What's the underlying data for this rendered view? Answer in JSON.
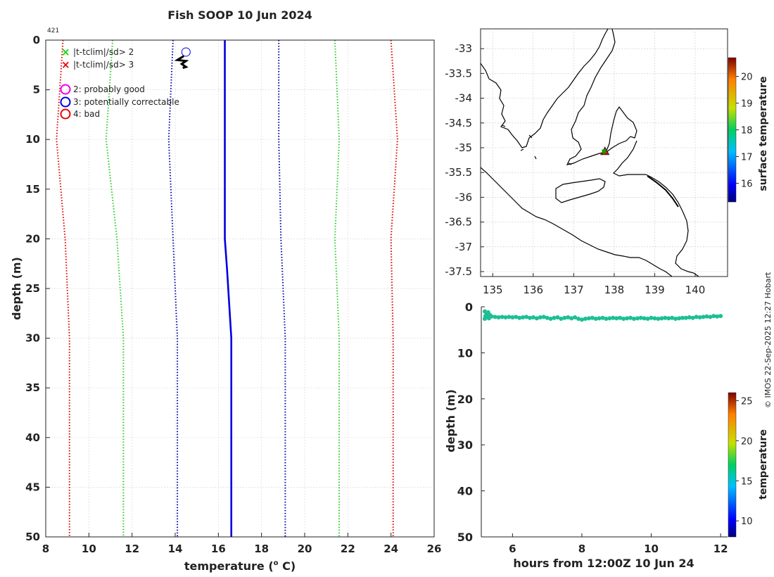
{
  "title": "Fish SOOP 10 Jun 2024",
  "drop_number": "421",
  "credit": "© IMOS 22-Sep-2025 12:27 Hobart",
  "chart_data": [
    {
      "id": "profile",
      "type": "line",
      "xlabel": "temperature (",
      "xlabel_sup": "o",
      "xlabel_tail": " C)",
      "ylabel": "depth (m)",
      "xlim": [
        8,
        26
      ],
      "ylim": [
        0,
        50
      ],
      "y_reversed": true,
      "grid": true,
      "xticks": [
        8,
        10,
        12,
        14,
        16,
        18,
        20,
        22,
        24,
        26
      ],
      "yticks": [
        0,
        5,
        10,
        15,
        20,
        25,
        30,
        35,
        40,
        45,
        50
      ],
      "legend_flags": [
        {
          "label": "|t-tclim|/sd> 2",
          "color": "#00dd00",
          "marker": "x"
        },
        {
          "label": "|t-tclim|/sd> 3",
          "color": "#ee0000",
          "marker": "x"
        }
      ],
      "legend_quality": [
        {
          "label": "2: probably good",
          "color": "#ee00ee",
          "marker": "o"
        },
        {
          "label": "3: potentially correctable",
          "color": "#0000dd",
          "marker": "o"
        },
        {
          "label": "4: bad",
          "color": "#ee0000",
          "marker": "o"
        }
      ],
      "series": [
        {
          "color": "#dd0000",
          "style": "dotted",
          "points": [
            [
              8.8,
              0
            ],
            [
              8.5,
              10
            ],
            [
              8.9,
              20
            ],
            [
              9.1,
              30
            ],
            [
              9.1,
              50
            ]
          ]
        },
        {
          "color": "#22cc22",
          "style": "dotted",
          "points": [
            [
              11.1,
              0
            ],
            [
              10.8,
              10
            ],
            [
              11.3,
              20
            ],
            [
              11.6,
              30
            ],
            [
              11.6,
              50
            ]
          ]
        },
        {
          "color": "#0000aa",
          "style": "dotted",
          "points": [
            [
              13.9,
              0
            ],
            [
              13.7,
              10
            ],
            [
              13.9,
              20
            ],
            [
              14.1,
              30
            ],
            [
              14.1,
              50
            ]
          ]
        },
        {
          "color": "#0000dd",
          "style": "solid",
          "points": [
            [
              16.3,
              0
            ],
            [
              16.3,
              10
            ],
            [
              16.3,
              20
            ],
            [
              16.4,
              23
            ],
            [
              16.6,
              30
            ],
            [
              16.6,
              50
            ]
          ]
        },
        {
          "color": "#0000aa",
          "style": "dotted",
          "points": [
            [
              18.8,
              0
            ],
            [
              18.8,
              10
            ],
            [
              18.9,
              20
            ],
            [
              19.1,
              30
            ],
            [
              19.1,
              50
            ]
          ]
        },
        {
          "color": "#22cc22",
          "style": "dotted",
          "points": [
            [
              21.4,
              0
            ],
            [
              21.6,
              10
            ],
            [
              21.4,
              20
            ],
            [
              21.6,
              30
            ],
            [
              21.6,
              50
            ]
          ]
        },
        {
          "color": "#dd0000",
          "style": "dotted",
          "points": [
            [
              24.0,
              0
            ],
            [
              24.3,
              10
            ],
            [
              24.0,
              20
            ],
            [
              24.1,
              30
            ],
            [
              24.1,
              50
            ]
          ]
        }
      ],
      "black_trace": [
        [
          14.4,
          1.6
        ],
        [
          14.1,
          2.0
        ],
        [
          14.5,
          2.1
        ],
        [
          14.3,
          2.4
        ],
        [
          14.5,
          2.7
        ],
        [
          14.35,
          2.8
        ]
      ],
      "flag_circle": {
        "x": 14.5,
        "y": 1.2,
        "color": "#0000dd"
      }
    },
    {
      "id": "map",
      "type": "map",
      "xlim": [
        134.7,
        140.8
      ],
      "ylim": [
        -37.6,
        -32.6
      ],
      "xticks": [
        135,
        136,
        137,
        138,
        139,
        140
      ],
      "yticks": [
        -33,
        -33.5,
        -34,
        -34.5,
        -35,
        -35.5,
        -36,
        -36.5,
        -37,
        -37.5
      ],
      "ytick_labels": [
        "-33",
        "-33.5",
        "-34",
        "-34.5",
        "-35",
        "-35.5",
        "-36",
        "-36.5",
        "-37",
        "-37.5"
      ],
      "grid": true,
      "marker": {
        "lon": 137.77,
        "lat": -35.07
      },
      "colorbar": {
        "label": "surface temperature",
        "range": [
          15.3,
          20.7
        ],
        "ticks": [
          16,
          17,
          18,
          19,
          20
        ]
      }
    },
    {
      "id": "timeseries",
      "type": "scatter",
      "xlabel": "hours from 12:00Z 10 Jun 24",
      "ylabel": "depth (m)",
      "xlim": [
        5.1,
        12.2
      ],
      "ylim": [
        0,
        50
      ],
      "y_reversed": true,
      "xticks": [
        6,
        8,
        10,
        12
      ],
      "yticks": [
        0,
        10,
        20,
        30,
        40,
        50
      ],
      "point_color": "#1dbf95",
      "points": [
        [
          5.2,
          1.0
        ],
        [
          5.25,
          1.5
        ],
        [
          5.3,
          1.2
        ],
        [
          5.22,
          2.0
        ],
        [
          5.28,
          2.3
        ],
        [
          5.35,
          1.8
        ],
        [
          5.2,
          2.6
        ],
        [
          5.32,
          2.5
        ],
        [
          5.4,
          2.1
        ],
        [
          5.5,
          2.2
        ],
        [
          5.6,
          2.3
        ],
        [
          5.7,
          2.2
        ],
        [
          5.8,
          2.3
        ],
        [
          5.9,
          2.2
        ],
        [
          6.0,
          2.3
        ],
        [
          6.1,
          2.2
        ],
        [
          6.2,
          2.4
        ],
        [
          6.3,
          2.3
        ],
        [
          6.4,
          2.2
        ],
        [
          6.5,
          2.4
        ],
        [
          6.6,
          2.3
        ],
        [
          6.7,
          2.5
        ],
        [
          6.8,
          2.3
        ],
        [
          6.9,
          2.2
        ],
        [
          7.0,
          2.4
        ],
        [
          7.1,
          2.6
        ],
        [
          7.2,
          2.4
        ],
        [
          7.3,
          2.3
        ],
        [
          7.4,
          2.6
        ],
        [
          7.5,
          2.4
        ],
        [
          7.6,
          2.3
        ],
        [
          7.7,
          2.5
        ],
        [
          7.8,
          2.3
        ],
        [
          7.9,
          2.6
        ],
        [
          8.0,
          2.8
        ],
        [
          8.1,
          2.6
        ],
        [
          8.2,
          2.5
        ],
        [
          8.3,
          2.4
        ],
        [
          8.4,
          2.6
        ],
        [
          8.5,
          2.5
        ],
        [
          8.6,
          2.4
        ],
        [
          8.7,
          2.6
        ],
        [
          8.8,
          2.5
        ],
        [
          8.9,
          2.4
        ],
        [
          9.0,
          2.5
        ],
        [
          9.1,
          2.4
        ],
        [
          9.2,
          2.6
        ],
        [
          9.3,
          2.5
        ],
        [
          9.4,
          2.4
        ],
        [
          9.5,
          2.6
        ],
        [
          9.6,
          2.5
        ],
        [
          9.7,
          2.4
        ],
        [
          9.8,
          2.5
        ],
        [
          9.9,
          2.6
        ],
        [
          10.0,
          2.4
        ],
        [
          10.1,
          2.5
        ],
        [
          10.2,
          2.6
        ],
        [
          10.3,
          2.5
        ],
        [
          10.4,
          2.4
        ],
        [
          10.5,
          2.5
        ],
        [
          10.6,
          2.4
        ],
        [
          10.7,
          2.6
        ],
        [
          10.8,
          2.5
        ],
        [
          10.9,
          2.4
        ],
        [
          11.0,
          2.4
        ],
        [
          11.1,
          2.3
        ],
        [
          11.2,
          2.4
        ],
        [
          11.3,
          2.2
        ],
        [
          11.4,
          2.3
        ],
        [
          11.5,
          2.2
        ],
        [
          11.6,
          2.1
        ],
        [
          11.7,
          2.2
        ],
        [
          11.8,
          2.0
        ],
        [
          11.9,
          2.1
        ],
        [
          12.0,
          2.0
        ]
      ],
      "colorbar": {
        "label": "temperature",
        "range": [
          8,
          26
        ],
        "ticks": [
          10,
          15,
          20,
          25
        ]
      }
    }
  ]
}
